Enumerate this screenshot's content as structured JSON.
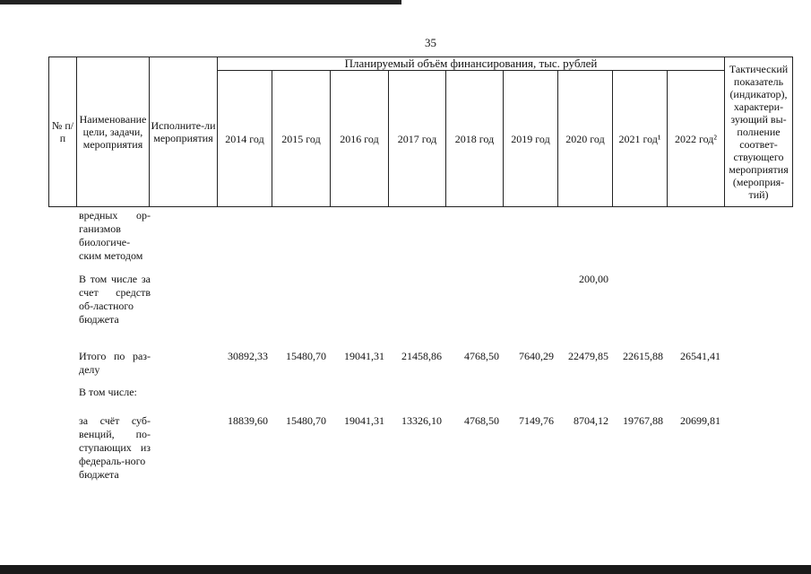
{
  "page_number": "35",
  "header": {
    "no": "№ п/п",
    "name": "Наименование цели, задачи, мероприятия",
    "executor": "Исполните-ли мероприятия",
    "funding": "Планируемый объём финансирования, тыс. рублей",
    "years": [
      "2014 год",
      "2015 год",
      "2016 год",
      "2017 год",
      "2018 год",
      "2019 год",
      "2020 год",
      "2021 год¹",
      "2022 год²"
    ],
    "indicator": "Тактический показатель (индикатор), характери-зующий вы-полнение соответ-ствующего мероприятия (мероприя-тий)"
  },
  "rows": [
    {
      "label": "вредных ор-ганизмов биологиче-ским методом",
      "values": [
        "",
        "",
        "",
        "",
        "",
        "",
        "",
        "",
        ""
      ]
    },
    {
      "label": "В том числе за счет средств об-ластного бюджета",
      "values": [
        "",
        "",
        "",
        "",
        "",
        "",
        "200,00",
        "",
        ""
      ]
    },
    {
      "label": "Итого по раз-делу",
      "values": [
        "30892,33",
        "15480,70",
        "19041,31",
        "21458,86",
        "4768,50",
        "7640,29",
        "22479,85",
        "22615,88",
        "26541,41"
      ]
    },
    {
      "label": "В том числе:",
      "values": [
        "",
        "",
        "",
        "",
        "",
        "",
        "",
        "",
        ""
      ]
    },
    {
      "label": "за счёт суб-венций, по-ступающих из федераль-ного бюджета",
      "values": [
        "18839,60",
        "15480,70",
        "19041,31",
        "13326,10",
        "4768,50",
        "7149,76",
        "8704,12",
        "19767,88",
        "20699,81"
      ]
    }
  ]
}
